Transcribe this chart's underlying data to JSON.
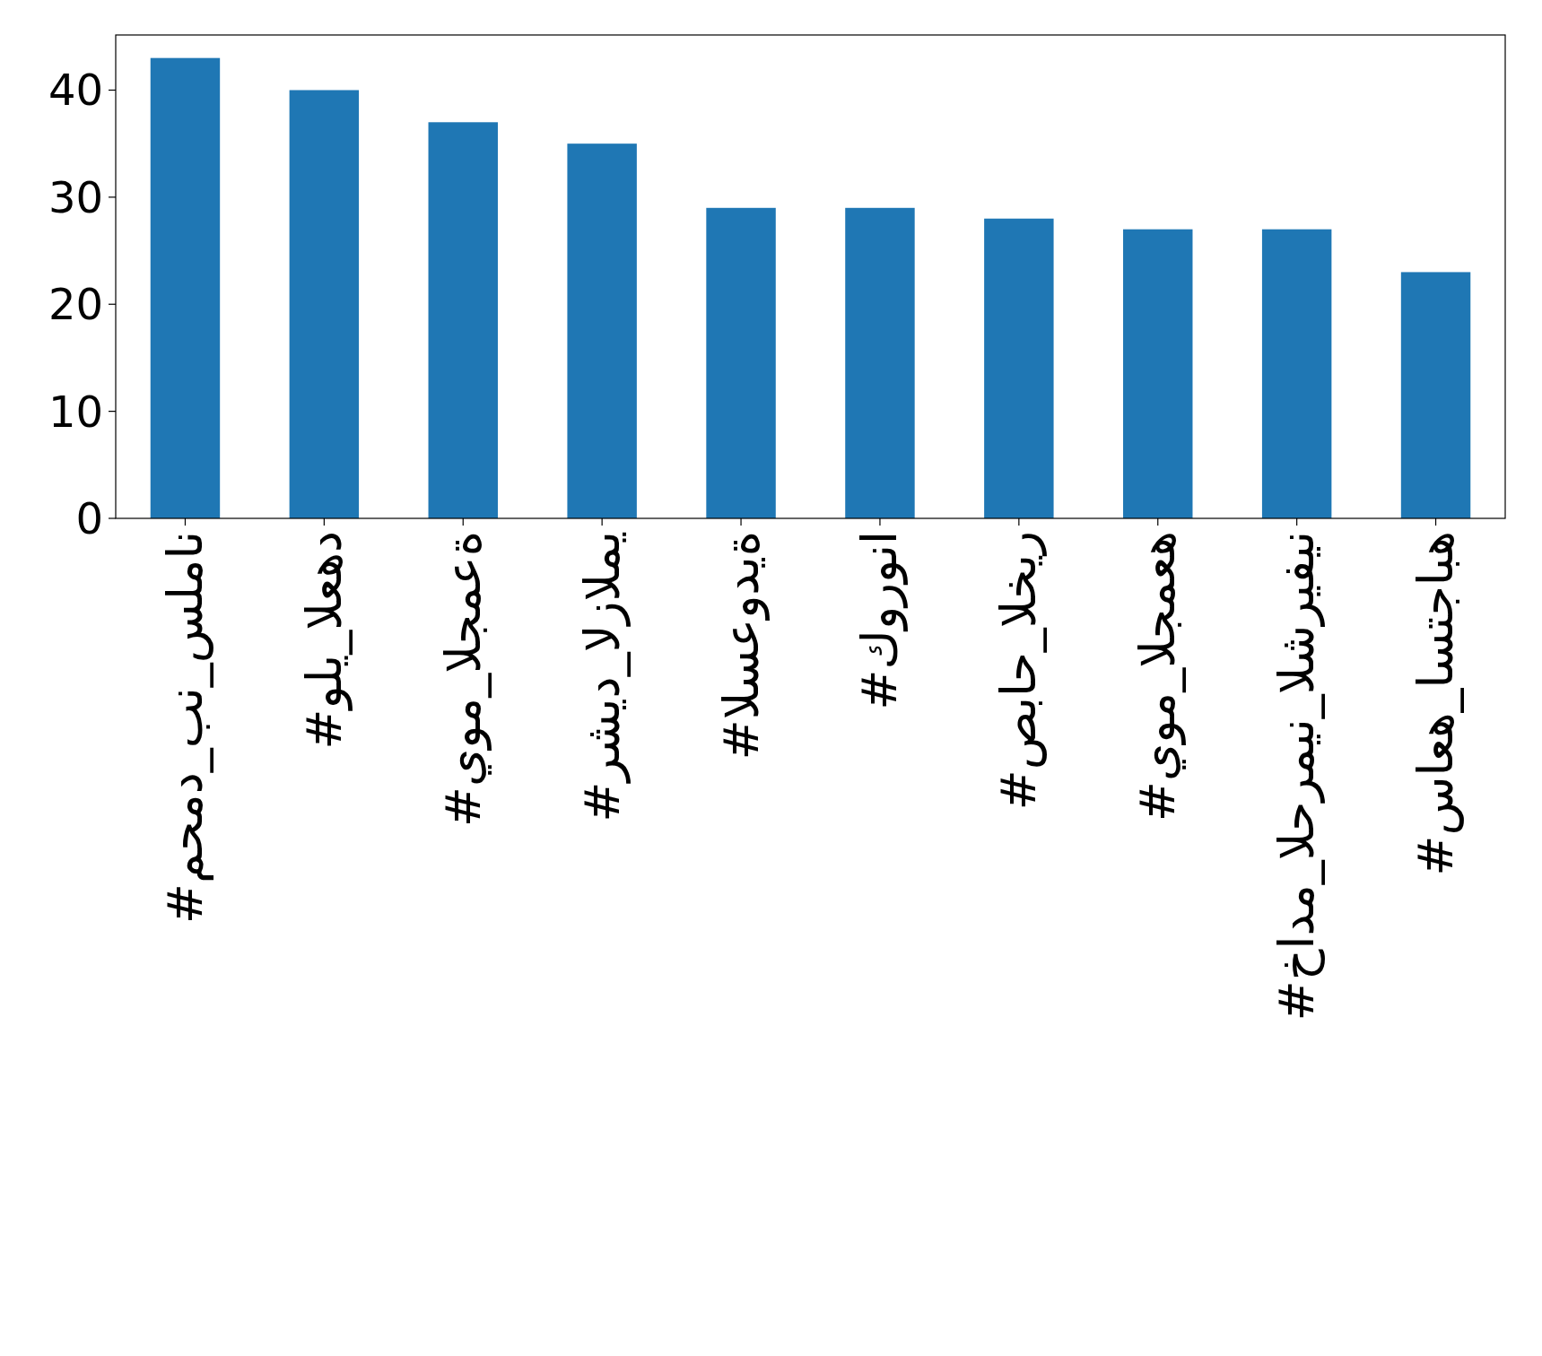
{
  "chart_data": {
    "type": "bar",
    "categories": [
      "#محمد_بن_سلمان",
      "#ولي_العهد",
      "#يوم_الجمعة",
      "#رشيد_الزالمي",
      "#السعودية",
      "#كورونا",
      "#صباح_الخير",
      "#يوم_الجمعه",
      "#خادم_الحرمين_الشريفين",
      "#ساعه_استجابه"
    ],
    "values": [
      43,
      40,
      37,
      35,
      29,
      29,
      28,
      27,
      27,
      23
    ],
    "color": "#1f77b4",
    "ylim": [
      0,
      45.15
    ],
    "yticks": [
      0,
      10,
      20,
      30,
      40
    ],
    "grid": false
  }
}
